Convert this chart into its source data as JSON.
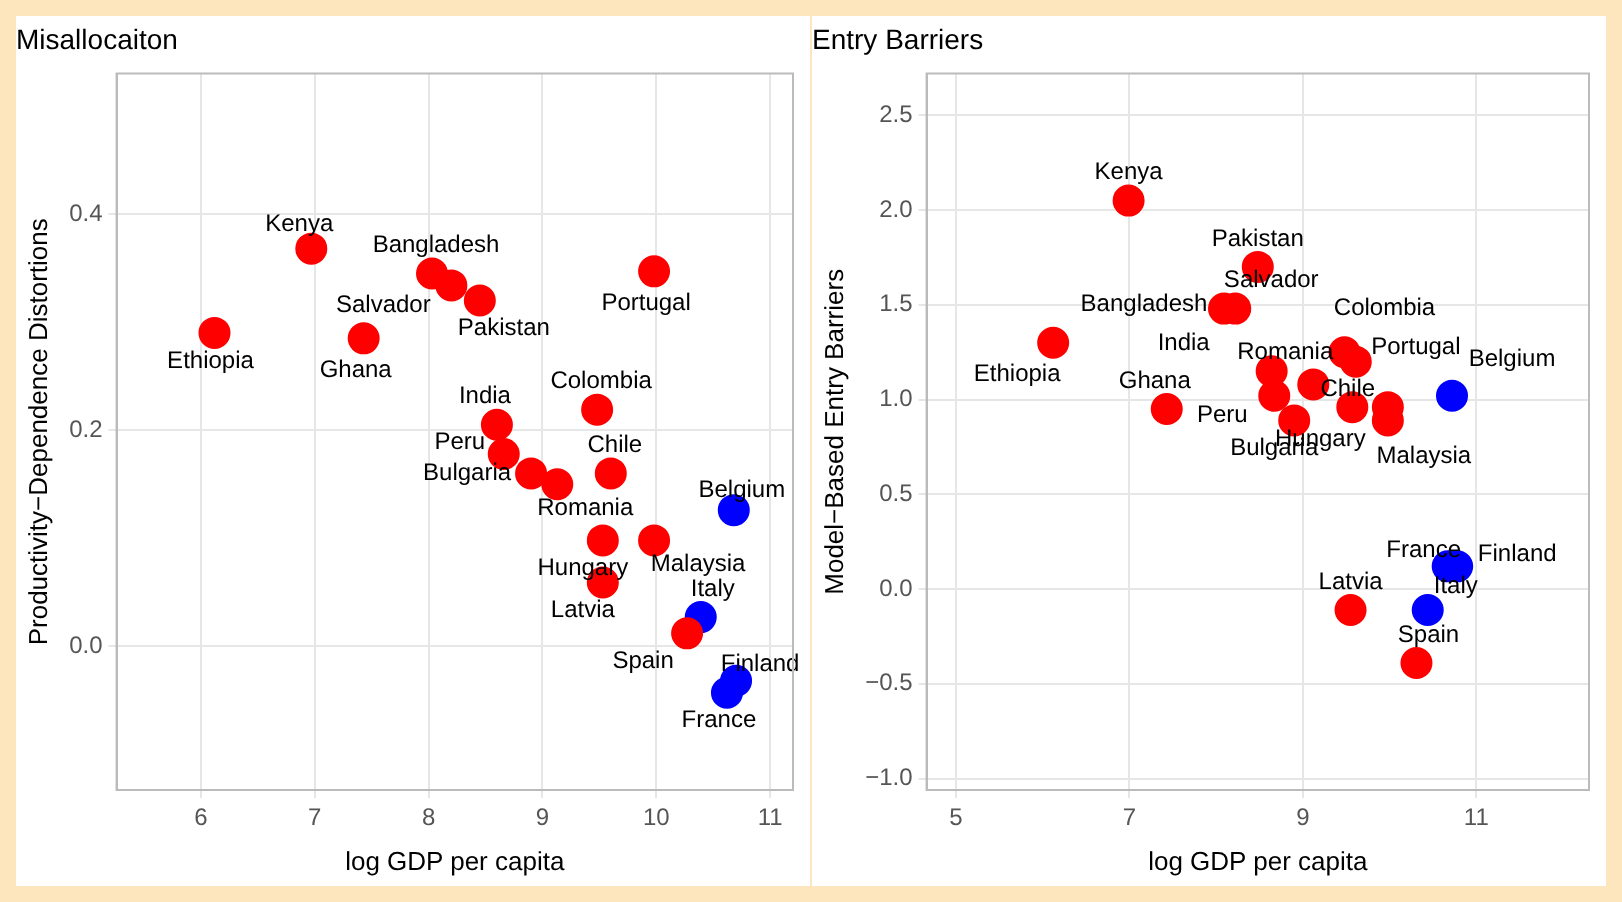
{
  "chart_data": [
    {
      "type": "scatter",
      "title": "Misallocaiton",
      "xlabel": "log GDP per capita",
      "ylabel": "Productivity−Dependence Distortions",
      "xlim": [
        5.26,
        11.2
      ],
      "xticks": [
        6,
        7,
        8,
        9,
        10,
        11
      ],
      "ylim": [
        -0.133,
        0.53
      ],
      "yticks": [
        {
          "value": 0,
          "label": "0.0"
        },
        0.2,
        0.4
      ],
      "grid": true,
      "legend": false,
      "marker": "circle",
      "series": [
        {
          "color": "#ff0000",
          "x": [
            6.12,
            6.97,
            8.03,
            8.2,
            8.45,
            7.43,
            9.98,
            9.48,
            8.6,
            8.66,
            8.9,
            9.13,
            9.6,
            9.53,
            9.98,
            9.53,
            10.27
          ],
          "values": [
            0.29,
            0.368,
            0.345,
            0.334,
            0.32,
            0.285,
            0.347,
            0.219,
            0.205,
            0.178,
            0.16,
            0.15,
            0.16,
            0.098,
            0.098,
            0.059,
            0.012
          ]
        },
        {
          "color": "#0000ff",
          "x": [
            10.68,
            10.39,
            10.7,
            10.62
          ],
          "values": [
            0.126,
            0.027,
            -0.032,
            -0.043
          ]
        }
      ],
      "annotations": [
        {
          "text": "Ethiopia",
          "x": 6.12,
          "y": 0.29
        },
        {
          "text": "Kenya",
          "x": 6.97,
          "y": 0.368
        },
        {
          "text": "Bangladesh",
          "x": 8.03,
          "y": 0.345
        },
        {
          "text": "Salvador",
          "x": 8.2,
          "y": 0.334
        },
        {
          "text": "Pakistan",
          "x": 8.45,
          "y": 0.32
        },
        {
          "text": "Ghana",
          "x": 7.43,
          "y": 0.285
        },
        {
          "text": "Portugal",
          "x": 9.98,
          "y": 0.347
        },
        {
          "text": "Colombia",
          "x": 9.48,
          "y": 0.219
        },
        {
          "text": "India",
          "x": 8.6,
          "y": 0.205
        },
        {
          "text": "Peru",
          "x": 8.66,
          "y": 0.178
        },
        {
          "text": "Bulgaria",
          "x": 8.9,
          "y": 0.16
        },
        {
          "text": "Romania",
          "x": 9.13,
          "y": 0.15
        },
        {
          "text": "Chile",
          "x": 9.6,
          "y": 0.16
        },
        {
          "text": "Hungary",
          "x": 9.53,
          "y": 0.098
        },
        {
          "text": "Malaysia",
          "x": 9.98,
          "y": 0.098
        },
        {
          "text": "Latvia",
          "x": 9.53,
          "y": 0.059
        },
        {
          "text": "Spain",
          "x": 10.27,
          "y": 0.012
        },
        {
          "text": "Belgium",
          "x": 10.68,
          "y": 0.126
        },
        {
          "text": "Italy",
          "x": 10.39,
          "y": 0.027
        },
        {
          "text": "Finland",
          "x": 10.7,
          "y": -0.032
        },
        {
          "text": "France",
          "x": 10.62,
          "y": -0.043
        }
      ]
    },
    {
      "type": "scatter",
      "title": "Entry Barriers",
      "xlabel": "log GDP per capita",
      "ylabel": "Model−Based Entry Barriers",
      "xlim": [
        4.66,
        12.3
      ],
      "xticks": [
        5,
        7,
        9,
        11
      ],
      "ylim": [
        -1.06,
        2.72
      ],
      "yticks": [
        {
          "value": -1,
          "label": "−1.0"
        },
        -0.5,
        {
          "value": 0,
          "label": "0.0"
        },
        0.5,
        {
          "value": 1,
          "label": "1.0"
        },
        1.5,
        {
          "value": 2,
          "label": "2.0"
        },
        2.5
      ],
      "grid": true,
      "legend": false,
      "marker": "circle",
      "series": [
        {
          "color": "#ff0000",
          "x": [
            6.12,
            6.99,
            8.09,
            8.22,
            8.48,
            7.43,
            9.98,
            9.48,
            8.64,
            8.67,
            8.9,
            9.12,
            9.61,
            9.57,
            9.98,
            9.55,
            10.31
          ],
          "values": [
            1.3,
            2.05,
            1.48,
            1.48,
            1.7,
            0.95,
            0.96,
            1.25,
            1.15,
            1.02,
            0.89,
            1.08,
            1.2,
            0.96,
            0.89,
            -0.11,
            -0.39
          ]
        },
        {
          "color": "#0000ff",
          "x": [
            10.72,
            10.44,
            10.78,
            10.67
          ],
          "values": [
            1.02,
            -0.11,
            0.12,
            0.12
          ]
        }
      ],
      "annotations": [
        {
          "text": "Ethiopia",
          "x": 6.12,
          "y": 1.3
        },
        {
          "text": "Kenya",
          "x": 6.99,
          "y": 2.05
        },
        {
          "text": "Bangladesh",
          "x": 8.09,
          "y": 1.48
        },
        {
          "text": "Salvador",
          "x": 8.22,
          "y": 1.48
        },
        {
          "text": "Pakistan",
          "x": 8.48,
          "y": 1.7
        },
        {
          "text": "Ghana",
          "x": 7.43,
          "y": 0.95
        },
        {
          "text": "Portugal",
          "x": 9.98,
          "y": 0.96
        },
        {
          "text": "Colombia",
          "x": 9.48,
          "y": 1.25
        },
        {
          "text": "India",
          "x": 8.64,
          "y": 1.15
        },
        {
          "text": "Peru",
          "x": 8.67,
          "y": 1.02
        },
        {
          "text": "Bulgaria",
          "x": 8.9,
          "y": 0.89
        },
        {
          "text": "Romania",
          "x": 9.12,
          "y": 1.08
        },
        {
          "text": "Chile",
          "x": 9.61,
          "y": 1.2
        },
        {
          "text": "Hungary",
          "x": 9.57,
          "y": 0.96
        },
        {
          "text": "Malaysia",
          "x": 9.98,
          "y": 0.89
        },
        {
          "text": "Latvia",
          "x": 9.55,
          "y": -0.11
        },
        {
          "text": "Spain",
          "x": 10.31,
          "y": -0.39
        },
        {
          "text": "Belgium",
          "x": 10.72,
          "y": 1.02
        },
        {
          "text": "Italy",
          "x": 10.44,
          "y": -0.11
        },
        {
          "text": "Finland",
          "x": 10.78,
          "y": 0.12
        },
        {
          "text": "France",
          "x": 10.67,
          "y": 0.12
        }
      ]
    }
  ]
}
